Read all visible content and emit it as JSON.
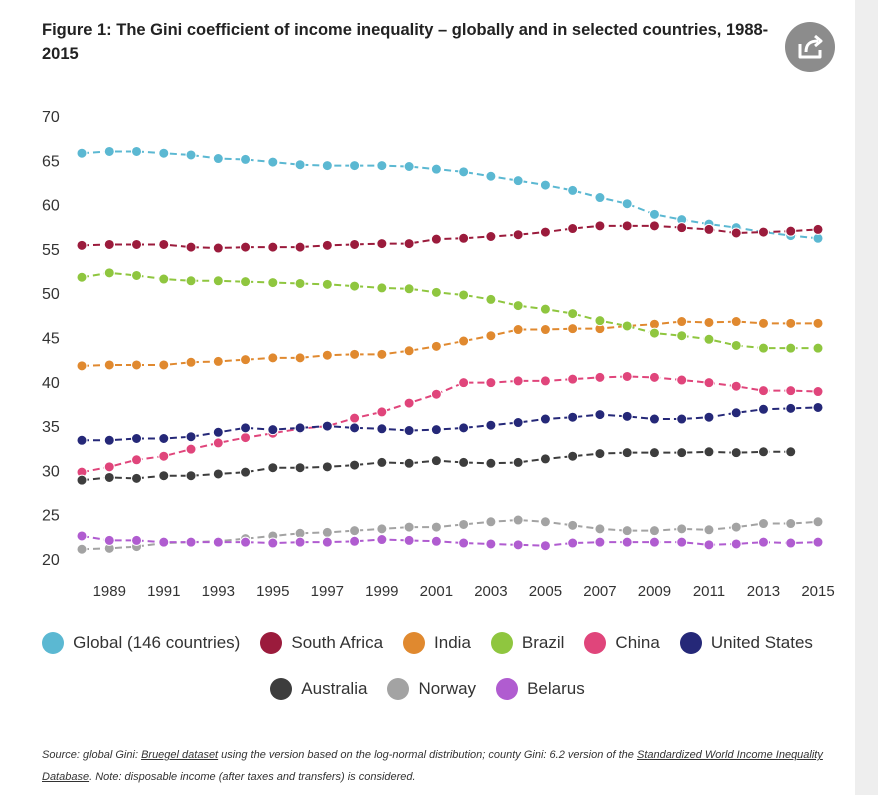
{
  "title": "Figure 1: The Gini coefficient of income inequality – globally and in selected countries, 1988-2015",
  "share_icon": "share-icon",
  "source": {
    "part1": "Source: global Gini: ",
    "link1": "Bruegel dataset",
    "part2": " using the version based on the log-normal distribution; county Gini: 6.2 version of the ",
    "link2": "Standardized World Income Inequality Database",
    "part3": ". Note: disposable income (after taxes and transfers) is considered."
  },
  "chart_data": {
    "type": "line",
    "title": "Figure 1: The Gini coefficient of income inequality – globally and in selected countries, 1988-2015",
    "xlabel": "",
    "ylabel": "",
    "xlim": [
      1988,
      2015
    ],
    "ylim": [
      20,
      70
    ],
    "yticks": [
      20,
      25,
      30,
      35,
      40,
      45,
      50,
      55,
      60,
      65,
      70
    ],
    "xticks": [
      1989,
      1991,
      1993,
      1995,
      1997,
      1999,
      2001,
      2003,
      2005,
      2007,
      2009,
      2011,
      2013,
      2015
    ],
    "grid": false,
    "legend_position": "bottom",
    "x": [
      1988,
      1989,
      1990,
      1991,
      1992,
      1993,
      1994,
      1995,
      1996,
      1997,
      1998,
      1999,
      2000,
      2001,
      2002,
      2003,
      2004,
      2005,
      2006,
      2007,
      2008,
      2009,
      2010,
      2011,
      2012,
      2013,
      2014,
      2015
    ],
    "series": [
      {
        "name": "Global (146 countries)",
        "color": "#5bb8d2",
        "values": [
          65.8,
          66.0,
          66.0,
          65.8,
          65.6,
          65.2,
          65.1,
          64.8,
          64.5,
          64.4,
          64.4,
          64.4,
          64.3,
          64.0,
          63.7,
          63.2,
          62.7,
          62.2,
          61.6,
          60.8,
          60.1,
          58.9,
          58.3,
          57.8,
          57.4,
          56.9,
          56.5,
          56.2
        ]
      },
      {
        "name": "South Africa",
        "color": "#9b1b3c",
        "values": [
          55.4,
          55.5,
          55.5,
          55.5,
          55.2,
          55.1,
          55.2,
          55.2,
          55.2,
          55.4,
          55.5,
          55.6,
          55.6,
          56.1,
          56.2,
          56.4,
          56.6,
          56.9,
          57.3,
          57.6,
          57.6,
          57.6,
          57.4,
          57.2,
          56.8,
          56.9,
          57.0,
          57.2
        ]
      },
      {
        "name": "India",
        "color": "#e0892f",
        "values": [
          41.8,
          41.9,
          41.9,
          41.9,
          42.2,
          42.3,
          42.5,
          42.7,
          42.7,
          43.0,
          43.1,
          43.1,
          43.5,
          44.0,
          44.6,
          45.2,
          45.9,
          45.9,
          46.0,
          46.0,
          46.3,
          46.5,
          46.8,
          46.7,
          46.8,
          46.6,
          46.6,
          46.6
        ]
      },
      {
        "name": "Brazil",
        "color": "#8fc63f",
        "values": [
          51.8,
          52.3,
          52.0,
          51.6,
          51.4,
          51.4,
          51.3,
          51.2,
          51.1,
          51.0,
          50.8,
          50.6,
          50.5,
          50.1,
          49.8,
          49.3,
          48.6,
          48.2,
          47.7,
          46.9,
          46.3,
          45.5,
          45.2,
          44.8,
          44.1,
          43.8,
          43.8,
          43.8
        ]
      },
      {
        "name": "China",
        "color": "#e0457b",
        "values": [
          29.8,
          30.4,
          31.2,
          31.6,
          32.4,
          33.1,
          33.7,
          34.2,
          34.7,
          35.0,
          35.9,
          36.6,
          37.6,
          38.6,
          39.9,
          39.9,
          40.1,
          40.1,
          40.3,
          40.5,
          40.6,
          40.5,
          40.2,
          39.9,
          39.5,
          39.0,
          39.0,
          38.9
        ]
      },
      {
        "name": "United States",
        "color": "#252878",
        "values": [
          33.4,
          33.4,
          33.6,
          33.6,
          33.8,
          34.3,
          34.8,
          34.6,
          34.8,
          35.0,
          34.8,
          34.7,
          34.5,
          34.6,
          34.8,
          35.1,
          35.4,
          35.8,
          36.0,
          36.3,
          36.1,
          35.8,
          35.8,
          36.0,
          36.5,
          36.9,
          37.0,
          37.1
        ]
      },
      {
        "name": "Australia",
        "color": "#3d3d3d",
        "values": [
          28.9,
          29.2,
          29.1,
          29.4,
          29.4,
          29.6,
          29.8,
          30.3,
          30.3,
          30.4,
          30.6,
          30.9,
          30.8,
          31.1,
          30.9,
          30.8,
          30.9,
          31.3,
          31.6,
          31.9,
          32.0,
          32.0,
          32.0,
          32.1,
          32.0,
          32.1,
          32.1,
          null
        ]
      },
      {
        "name": "Norway",
        "color": "#a3a3a3",
        "values": [
          21.1,
          21.2,
          21.4,
          21.8,
          21.9,
          22.0,
          22.3,
          22.6,
          22.9,
          23.0,
          23.2,
          23.4,
          23.6,
          23.6,
          23.9,
          24.2,
          24.4,
          24.2,
          23.8,
          23.4,
          23.2,
          23.2,
          23.4,
          23.3,
          23.6,
          24.0,
          24.0,
          24.2
        ]
      },
      {
        "name": "Belarus",
        "color": "#b05cd0",
        "values": [
          22.6,
          22.1,
          22.1,
          21.9,
          21.9,
          21.9,
          21.9,
          21.8,
          21.9,
          21.9,
          22.0,
          22.2,
          22.1,
          22.0,
          21.8,
          21.7,
          21.6,
          21.5,
          21.8,
          21.9,
          21.9,
          21.9,
          21.9,
          21.6,
          21.7,
          21.9,
          21.8,
          21.9
        ]
      }
    ]
  }
}
